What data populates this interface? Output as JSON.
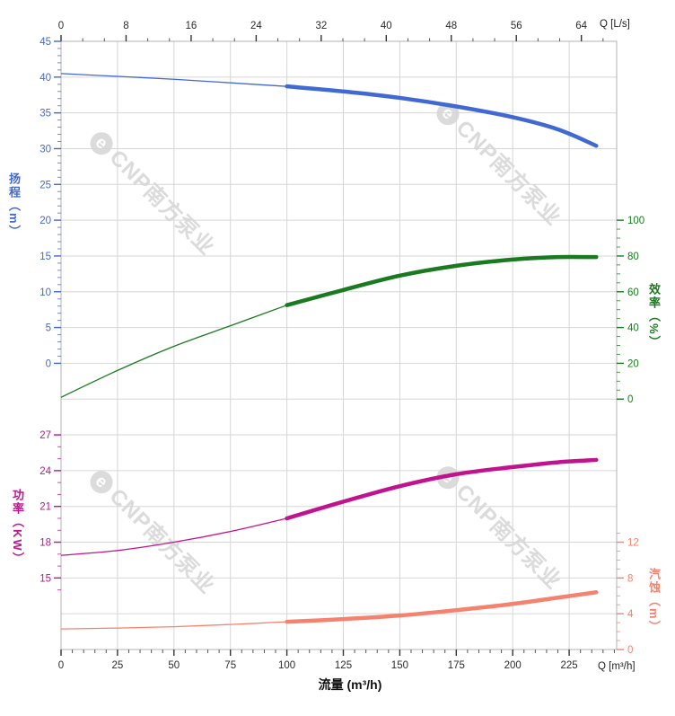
{
  "chart_data": {
    "type": "line",
    "title": "",
    "x_axis_bottom": {
      "title": "流量 (m³/h)",
      "corner_label": "Q [m³/h]",
      "unit": "m³/h",
      "major_ticks": [
        0,
        25,
        50,
        75,
        100,
        125,
        150,
        175,
        200,
        225
      ],
      "minor_step": 5,
      "range": [
        0,
        246
      ]
    },
    "x_axis_top": {
      "corner_label": "Q [L/s]",
      "unit": "L/s",
      "major_ticks": [
        0,
        8,
        16,
        24,
        32,
        40,
        48,
        56,
        64
      ],
      "minor_per_major": 3,
      "range": [
        0,
        68.3
      ]
    },
    "y_axes": {
      "head": {
        "title": "扬程（m）",
        "side": "left",
        "major_ticks": [
          45,
          40,
          35,
          30,
          25,
          20,
          15,
          10,
          5,
          0
        ],
        "minor_step": 1,
        "range": [
          0,
          45
        ]
      },
      "eff": {
        "title": "效率（%）",
        "side": "right",
        "major_ticks": [
          100,
          80,
          60,
          40,
          20,
          0
        ],
        "minor_step": 5,
        "range": [
          0,
          100
        ]
      },
      "power": {
        "title": "功率（KW）",
        "side": "left",
        "major_ticks": [
          27,
          24,
          21,
          18,
          15
        ],
        "minor_step": 1,
        "range": [
          14,
          27
        ]
      },
      "npsh": {
        "title": "汽蚀（m）",
        "side": "right",
        "major_ticks": [
          12,
          8,
          4,
          0
        ],
        "minor_step": 1,
        "range": [
          0,
          13
        ]
      }
    },
    "duty_split_flow": 100,
    "series": [
      {
        "name": "head-curve",
        "axis": "head",
        "color": "#4169d2",
        "points": [
          [
            0,
            40.5
          ],
          [
            25,
            40.1
          ],
          [
            50,
            39.7
          ],
          [
            75,
            39.2
          ],
          [
            100,
            38.7
          ],
          [
            125,
            38.0
          ],
          [
            150,
            37.1
          ],
          [
            175,
            35.9
          ],
          [
            200,
            34.4
          ],
          [
            220,
            32.7
          ],
          [
            237,
            30.4
          ]
        ]
      },
      {
        "name": "efficiency-curve",
        "axis": "eff",
        "color": "#1a7a1f",
        "points": [
          [
            0,
            1
          ],
          [
            25,
            16
          ],
          [
            50,
            29.5
          ],
          [
            75,
            41
          ],
          [
            100,
            52.5
          ],
          [
            125,
            61
          ],
          [
            150,
            69
          ],
          [
            175,
            74.5
          ],
          [
            200,
            78
          ],
          [
            220,
            79.4
          ],
          [
            237,
            79.4
          ]
        ]
      },
      {
        "name": "power-curve",
        "axis": "power",
        "color": "#c2138f",
        "points": [
          [
            0,
            16.9
          ],
          [
            25,
            17.3
          ],
          [
            50,
            18.0
          ],
          [
            75,
            18.9
          ],
          [
            100,
            20.0
          ],
          [
            125,
            21.4
          ],
          [
            150,
            22.7
          ],
          [
            175,
            23.7
          ],
          [
            200,
            24.3
          ],
          [
            220,
            24.7
          ],
          [
            237,
            24.9
          ]
        ]
      },
      {
        "name": "npsh-curve",
        "axis": "npsh",
        "color": "#f5826e",
        "points": [
          [
            0,
            2.3
          ],
          [
            25,
            2.4
          ],
          [
            50,
            2.55
          ],
          [
            75,
            2.8
          ],
          [
            100,
            3.1
          ],
          [
            125,
            3.4
          ],
          [
            150,
            3.8
          ],
          [
            175,
            4.4
          ],
          [
            200,
            5.1
          ],
          [
            220,
            5.8
          ],
          [
            237,
            6.4
          ]
        ]
      }
    ],
    "grid": true,
    "legend": "none"
  },
  "colors": {
    "head": "#4169d2",
    "efficiency": "#1a7a1f",
    "power": "#c2138f",
    "npsh": "#f5826e",
    "axis_text": "#2b2b2b",
    "grid": "#d6d6d6",
    "border": "#b3b3b3",
    "watermark": "#dbdbdb"
  },
  "watermark": {
    "logo": "e",
    "text": "CNP南方泵业"
  }
}
